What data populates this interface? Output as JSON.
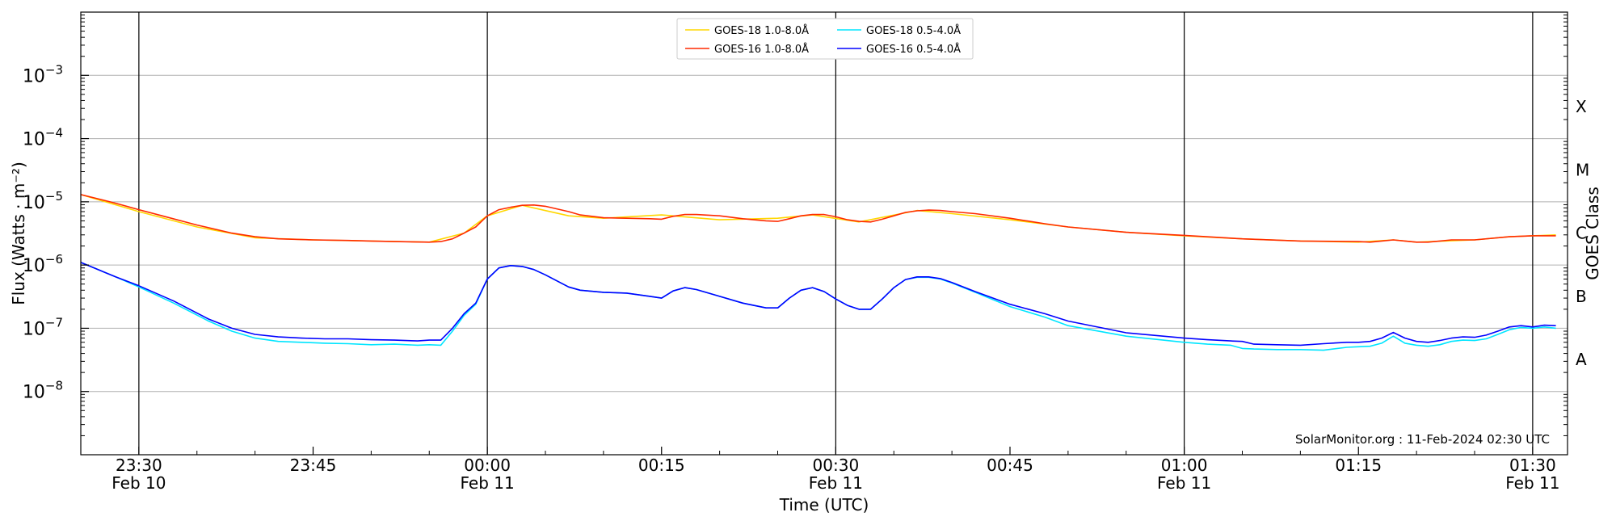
{
  "chart_data": {
    "type": "line",
    "title": "",
    "xlabel": "Time (UTC)",
    "ylabel": "Flux (Watts · m⁻²)",
    "y2label": "GOES Class",
    "yscale": "log",
    "ylim": [
      1e-09,
      0.01
    ],
    "xlim_minutes": [
      -35,
      93
    ],
    "yticks": [
      {
        "value": 1e-08,
        "base": "10",
        "exp": "−8"
      },
      {
        "value": 1e-07,
        "base": "10",
        "exp": "−7"
      },
      {
        "value": 1e-06,
        "base": "10",
        "exp": "−6"
      },
      {
        "value": 1e-05,
        "base": "10",
        "exp": "−5"
      },
      {
        "value": 0.0001,
        "base": "10",
        "exp": "−4"
      },
      {
        "value": 0.001,
        "base": "10",
        "exp": "−3"
      }
    ],
    "goes_classes": [
      {
        "label": "A",
        "value": 3.2e-08
      },
      {
        "label": "B",
        "value": 3.2e-07
      },
      {
        "label": "C",
        "value": 3.2e-06
      },
      {
        "label": "M",
        "value": 3.2e-05
      },
      {
        "label": "X",
        "value": 0.00032
      }
    ],
    "xticks": [
      {
        "t": -30,
        "time": "23:30",
        "date": "Feb 10",
        "vline": true
      },
      {
        "t": -15,
        "time": "23:45",
        "date": "",
        "vline": false
      },
      {
        "t": 0,
        "time": "00:00",
        "date": "Feb 11",
        "vline": true
      },
      {
        "t": 15,
        "time": "00:15",
        "date": "",
        "vline": false
      },
      {
        "t": 30,
        "time": "00:30",
        "date": "Feb 11",
        "vline": true
      },
      {
        "t": 45,
        "time": "00:45",
        "date": "",
        "vline": false
      },
      {
        "t": 60,
        "time": "01:00",
        "date": "Feb 11",
        "vline": true
      },
      {
        "t": 75,
        "time": "01:15",
        "date": "",
        "vline": false
      },
      {
        "t": 90,
        "time": "01:30",
        "date": "Feb 11",
        "vline": true
      }
    ],
    "grid": "horizontal",
    "legend_position": "top-center",
    "annotation": "SolarMonitor.org : 11-Feb-2024 02:30 UTC",
    "series": [
      {
        "name": "GOES-18 1.0-8.0Å",
        "color": "#ffd700",
        "x": [
          -35,
          -30,
          -25,
          -20,
          -15,
          -10,
          -5,
          -2,
          0,
          3,
          7,
          10,
          15,
          20,
          25,
          28,
          32,
          37,
          40,
          45,
          50,
          55,
          60,
          65,
          70,
          75,
          78,
          80,
          85,
          88,
          92
        ],
        "y": [
          1.3e-05,
          7e-06,
          4e-06,
          2.7e-06,
          2.5e-06,
          2.4e-06,
          2.3e-06,
          3.2e-06,
          6e-06,
          8.8e-06,
          6e-06,
          5.5e-06,
          6.2e-06,
          5.2e-06,
          5.5e-06,
          6.2e-06,
          4.8e-06,
          7.3e-06,
          6.5e-06,
          5.2e-06,
          4e-06,
          3.3e-06,
          2.9e-06,
          2.6e-06,
          2.4e-06,
          2.3e-06,
          2.5e-06,
          2.3e-06,
          2.5e-06,
          2.8e-06,
          3e-06
        ]
      },
      {
        "name": "GOES-16 1.0-8.0Å",
        "color": "#ff2a00",
        "x": [
          -35,
          -32,
          -30,
          -28,
          -25,
          -22,
          -20,
          -18,
          -15,
          -12,
          -10,
          -8,
          -5,
          -4,
          -3,
          -2,
          -1,
          0,
          1,
          2,
          3,
          4,
          5,
          7,
          8,
          10,
          12,
          14,
          15,
          16,
          17,
          18,
          20,
          22,
          24,
          25,
          26,
          27,
          28,
          29,
          30,
          31,
          32,
          33,
          34,
          35,
          36,
          37,
          38,
          39,
          40,
          42,
          45,
          48,
          50,
          55,
          60,
          65,
          70,
          75,
          76,
          77,
          78,
          79,
          80,
          81,
          82,
          83,
          85,
          88,
          90,
          92
        ],
        "y": [
          1.3e-05,
          9.5e-06,
          7.5e-06,
          6e-06,
          4.3e-06,
          3.2e-06,
          2.8e-06,
          2.6e-06,
          2.5e-06,
          2.45e-06,
          2.4e-06,
          2.35e-06,
          2.3e-06,
          2.35e-06,
          2.6e-06,
          3.2e-06,
          4e-06,
          6e-06,
          7.5e-06,
          8.2e-06,
          8.8e-06,
          8.9e-06,
          8.5e-06,
          7e-06,
          6.2e-06,
          5.6e-06,
          5.5e-06,
          5.4e-06,
          5.3e-06,
          5.9e-06,
          6.3e-06,
          6.3e-06,
          6e-06,
          5.4e-06,
          5e-06,
          4.9e-06,
          5.4e-06,
          6e-06,
          6.3e-06,
          6.3e-06,
          5.8e-06,
          5.2e-06,
          4.9e-06,
          4.8e-06,
          5.3e-06,
          6e-06,
          6.8e-06,
          7.2e-06,
          7.4e-06,
          7.3e-06,
          7e-06,
          6.5e-06,
          5.5e-06,
          4.5e-06,
          4e-06,
          3.3e-06,
          2.95e-06,
          2.6e-06,
          2.4e-06,
          2.35e-06,
          2.3e-06,
          2.4e-06,
          2.5e-06,
          2.4e-06,
          2.3e-06,
          2.3e-06,
          2.4e-06,
          2.5e-06,
          2.5e-06,
          2.8e-06,
          2.9e-06,
          2.9e-06
        ]
      },
      {
        "name": "GOES-18 0.5-4.0Å",
        "color": "#00e5ff",
        "x": [
          -35,
          -32,
          -30,
          -27,
          -24,
          -22,
          -20,
          -18,
          -16,
          -14,
          -12,
          -10,
          -8,
          -6,
          -5,
          -4,
          -3,
          -2,
          -1,
          0,
          1,
          2,
          3,
          4,
          5,
          7,
          8,
          10,
          12,
          14,
          15,
          16,
          17,
          18,
          20,
          22,
          24,
          25,
          26,
          27,
          28,
          29,
          30,
          31,
          32,
          33,
          34,
          35,
          36,
          37,
          38,
          39,
          40,
          42,
          45,
          48,
          50,
          55,
          60,
          62,
          64,
          65,
          66,
          68,
          70,
          72,
          74,
          75,
          76,
          77,
          78,
          79,
          80,
          81,
          82,
          83,
          84,
          85,
          86,
          87,
          88,
          89,
          90,
          91,
          92
        ],
        "y": [
          1.1e-06,
          6.5e-07,
          4.5e-07,
          2.5e-07,
          1.3e-07,
          9e-08,
          7e-08,
          6.2e-08,
          6e-08,
          5.8e-08,
          5.7e-08,
          5.5e-08,
          5.6e-08,
          5.4e-08,
          5.5e-08,
          5.4e-08,
          9e-08,
          1.6e-07,
          2.4e-07,
          6e-07,
          9e-07,
          9.8e-07,
          9.5e-07,
          8.5e-07,
          7e-07,
          4.5e-07,
          4e-07,
          3.7e-07,
          3.6e-07,
          3.2e-07,
          3e-07,
          3.9e-07,
          4.4e-07,
          4.1e-07,
          3.2e-07,
          2.5e-07,
          2.1e-07,
          2.1e-07,
          3e-07,
          4e-07,
          4.4e-07,
          3.8e-07,
          2.9e-07,
          2.3e-07,
          2e-07,
          2e-07,
          2.9e-07,
          4.4e-07,
          5.9e-07,
          6.4e-07,
          6.4e-07,
          6e-07,
          5.2e-07,
          3.7e-07,
          2.2e-07,
          1.5e-07,
          1.1e-07,
          7.5e-08,
          6e-08,
          5.6e-08,
          5.4e-08,
          4.8e-08,
          4.7e-08,
          4.6e-08,
          4.6e-08,
          4.5e-08,
          5e-08,
          5.1e-08,
          5.2e-08,
          5.8e-08,
          7.5e-08,
          5.8e-08,
          5.4e-08,
          5.2e-08,
          5.5e-08,
          6.2e-08,
          6.5e-08,
          6.4e-08,
          6.8e-08,
          8e-08,
          9.5e-08,
          1.03e-07,
          1e-07,
          1.05e-07,
          1e-07
        ]
      },
      {
        "name": "GOES-16 0.5-4.0Å",
        "color": "#0000ff",
        "x": [
          -35,
          -32,
          -30,
          -27,
          -24,
          -22,
          -20,
          -18,
          -16,
          -14,
          -12,
          -10,
          -8,
          -6,
          -5,
          -4,
          -3,
          -2,
          -1,
          0,
          1,
          2,
          3,
          4,
          5,
          7,
          8,
          10,
          12,
          14,
          15,
          16,
          17,
          18,
          20,
          22,
          24,
          25,
          26,
          27,
          28,
          29,
          30,
          31,
          32,
          33,
          34,
          35,
          36,
          37,
          38,
          39,
          40,
          42,
          45,
          48,
          50,
          55,
          60,
          62,
          64,
          65,
          66,
          68,
          70,
          72,
          74,
          75,
          76,
          77,
          78,
          79,
          80,
          81,
          82,
          83,
          84,
          85,
          86,
          87,
          88,
          89,
          90,
          91,
          92
        ],
        "y": [
          1.1e-06,
          6.5e-07,
          4.7e-07,
          2.7e-07,
          1.4e-07,
          1e-07,
          8e-08,
          7.3e-08,
          7e-08,
          6.8e-08,
          6.8e-08,
          6.6e-08,
          6.5e-08,
          6.3e-08,
          6.5e-08,
          6.5e-08,
          1e-07,
          1.7e-07,
          2.5e-07,
          6e-07,
          9e-07,
          9.8e-07,
          9.5e-07,
          8.5e-07,
          7e-07,
          4.5e-07,
          4e-07,
          3.7e-07,
          3.6e-07,
          3.2e-07,
          3e-07,
          3.9e-07,
          4.4e-07,
          4.1e-07,
          3.2e-07,
          2.5e-07,
          2.1e-07,
          2.1e-07,
          3e-07,
          4e-07,
          4.4e-07,
          3.8e-07,
          2.9e-07,
          2.3e-07,
          2e-07,
          2e-07,
          2.9e-07,
          4.4e-07,
          5.9e-07,
          6.5e-07,
          6.5e-07,
          6.1e-07,
          5.3e-07,
          3.8e-07,
          2.4e-07,
          1.7e-07,
          1.3e-07,
          8.5e-08,
          7e-08,
          6.6e-08,
          6.3e-08,
          6.2e-08,
          5.6e-08,
          5.5e-08,
          5.4e-08,
          5.7e-08,
          6e-08,
          6e-08,
          6.2e-08,
          7e-08,
          8.6e-08,
          7e-08,
          6.2e-08,
          6e-08,
          6.4e-08,
          7e-08,
          7.3e-08,
          7.2e-08,
          7.8e-08,
          9e-08,
          1.05e-07,
          1.1e-07,
          1.05e-07,
          1.12e-07,
          1.1e-07
        ]
      }
    ]
  }
}
